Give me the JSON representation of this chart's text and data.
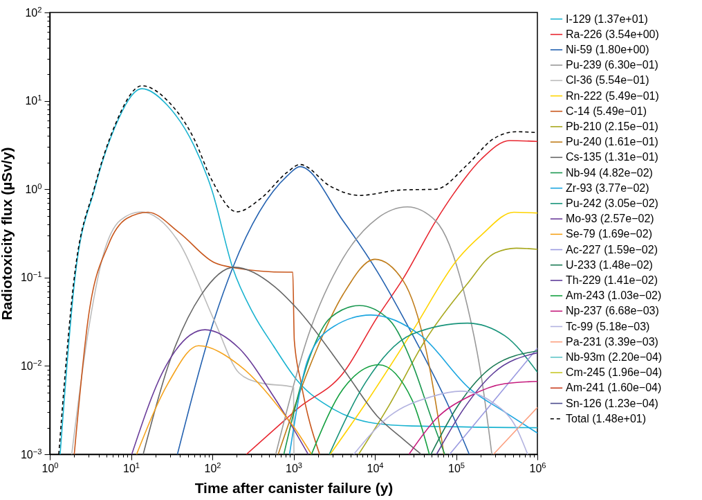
{
  "chart_data": {
    "type": "line",
    "xlabel": "Time after canister failure (y)",
    "ylabel": "Radiotoxicity flux (µSv/y)",
    "log": "xy",
    "legend": "right",
    "xlim": [
      1,
      1000000
    ],
    "ylim": [
      0.001,
      100
    ],
    "xticks": [
      {
        "value": 1,
        "label": "10$^{0}$"
      },
      {
        "value": 2,
        "label": null
      },
      {
        "value": 3,
        "label": null
      },
      {
        "value": 4,
        "label": null
      },
      {
        "value": 5,
        "label": null
      },
      {
        "value": 6,
        "label": null
      },
      {
        "value": 7,
        "label": null
      },
      {
        "value": 8,
        "label": null
      },
      {
        "value": 9,
        "label": null
      },
      {
        "value": 10,
        "label": "10$^{1}$"
      },
      {
        "value": 20,
        "label": null
      },
      {
        "value": 30,
        "label": null
      },
      {
        "value": 40,
        "label": null
      },
      {
        "value": 50,
        "label": null
      },
      {
        "value": 60,
        "label": null
      },
      {
        "value": 70,
        "label": null
      },
      {
        "value": 80,
        "label": null
      },
      {
        "value": 90,
        "label": null
      },
      {
        "value": 100,
        "label": "10$^{2}$"
      },
      {
        "value": 200,
        "label": null
      },
      {
        "value": 300,
        "label": null
      },
      {
        "value": 400,
        "label": null
      },
      {
        "value": 500,
        "label": null
      },
      {
        "value": 600,
        "label": null
      },
      {
        "value": 700,
        "label": null
      },
      {
        "value": 800,
        "label": null
      },
      {
        "value": 900,
        "label": null
      },
      {
        "value": 1000,
        "label": "10$^{3}$"
      },
      {
        "value": 2000,
        "label": null
      },
      {
        "value": 3000,
        "label": null
      },
      {
        "value": 4000,
        "label": null
      },
      {
        "value": 5000,
        "label": null
      },
      {
        "value": 6000,
        "label": null
      },
      {
        "value": 7000,
        "label": null
      },
      {
        "value": 8000,
        "label": null
      },
      {
        "value": 9000,
        "label": null
      },
      {
        "value": 10000,
        "label": "10$^{4}$"
      },
      {
        "value": 20000,
        "label": null
      },
      {
        "value": 30000,
        "label": null
      },
      {
        "value": 40000,
        "label": null
      },
      {
        "value": 50000,
        "label": null
      },
      {
        "value": 60000,
        "label": null
      },
      {
        "value": 70000,
        "label": null
      },
      {
        "value": 80000,
        "label": null
      },
      {
        "value": 90000,
        "label": null
      },
      {
        "value": 100000,
        "label": "10$^{5}$"
      },
      {
        "value": 200000,
        "label": null
      },
      {
        "value": 300000,
        "label": null
      },
      {
        "value": 400000,
        "label": null
      },
      {
        "value": 500000,
        "label": null
      },
      {
        "value": 600000,
        "label": null
      },
      {
        "value": 700000,
        "label": null
      },
      {
        "value": 800000,
        "label": null
      },
      {
        "value": 900000,
        "label": null
      },
      {
        "value": 1000000,
        "label": "10$^{6}$"
      }
    ],
    "yticks": [
      {
        "value": 0.001,
        "label": "10$^{−3}$"
      },
      {
        "value": 0.002,
        "label": null
      },
      {
        "value": 0.003,
        "label": null
      },
      {
        "value": 0.004,
        "label": null
      },
      {
        "value": 0.005,
        "label": null
      },
      {
        "value": 0.006,
        "label": null
      },
      {
        "value": 0.007,
        "label": null
      },
      {
        "value": 0.008,
        "label": null
      },
      {
        "value": 0.009,
        "label": null
      },
      {
        "value": 0.01,
        "label": "10$^{−2}$"
      },
      {
        "value": 0.02,
        "label": null
      },
      {
        "value": 0.03,
        "label": null
      },
      {
        "value": 0.04,
        "label": null
      },
      {
        "value": 0.05,
        "label": null
      },
      {
        "value": 0.06,
        "label": null
      },
      {
        "value": 0.07,
        "label": null
      },
      {
        "value": 0.08,
        "label": null
      },
      {
        "value": 0.09,
        "label": null
      },
      {
        "value": 0.1,
        "label": "10$^{−1}$"
      },
      {
        "value": 0.2,
        "label": null
      },
      {
        "value": 0.3,
        "label": null
      },
      {
        "value": 0.4,
        "label": null
      },
      {
        "value": 0.5,
        "label": null
      },
      {
        "value": 0.6,
        "label": null
      },
      {
        "value": 0.7,
        "label": null
      },
      {
        "value": 0.8,
        "label": null
      },
      {
        "value": 0.9,
        "label": null
      },
      {
        "value": 1,
        "label": "10$^{0}$"
      },
      {
        "value": 2,
        "label": null
      },
      {
        "value": 3,
        "label": null
      },
      {
        "value": 4,
        "label": null
      },
      {
        "value": 5,
        "label": null
      },
      {
        "value": 6,
        "label": null
      },
      {
        "value": 7,
        "label": null
      },
      {
        "value": 8,
        "label": null
      },
      {
        "value": 9,
        "label": null
      },
      {
        "value": 10,
        "label": "10$^{1}$"
      },
      {
        "value": 20,
        "label": null
      },
      {
        "value": 30,
        "label": null
      },
      {
        "value": 40,
        "label": null
      },
      {
        "value": 50,
        "label": null
      },
      {
        "value": 60,
        "label": null
      },
      {
        "value": 70,
        "label": null
      },
      {
        "value": 80,
        "label": null
      },
      {
        "value": 90,
        "label": null
      },
      {
        "value": 100,
        "label": "10$^{2}$"
      }
    ],
    "series": [
      {
        "name": "I-129 (1.37e+01)",
        "color": "#1ab3d0",
        "x": [
          1.34,
          2.04,
          3.55,
          6.31,
          13.6,
          28,
          59,
          98,
          178,
          316,
          562,
          1100,
          3090,
          10000,
          28800,
          1000000
        ],
        "values": [
          0.001,
          0.1,
          1,
          5.0,
          13.7,
          8.9,
          3.16,
          1,
          0.129,
          0.0398,
          0.017,
          0.0069,
          0.00324,
          0.00224,
          0.00209,
          0.002
        ]
      },
      {
        "name": "Ra-226 (3.54e+00)",
        "color": "#e8262f",
        "x": [
          263,
          832,
          1100,
          4070,
          10700,
          22400,
          56200,
          93300,
          204000,
          457000,
          1000000
        ],
        "values": [
          0.001,
          0.00257,
          0.00324,
          0.0083,
          0.0355,
          0.098,
          0.437,
          0.89,
          2.19,
          3.55,
          3.47
        ]
      },
      {
        "name": "Ni-59 (1.80e+00)",
        "color": "#2361b0",
        "x": [
          37.2,
          105,
          178,
          832,
          1200,
          4070,
          10700,
          28800,
          77600,
          145000
        ],
        "values": [
          0.001,
          0.0331,
          0.129,
          1.41,
          1.8,
          0.437,
          0.117,
          0.0229,
          0.0038,
          0.001
        ]
      },
      {
        "name": "Pu-239 (6.30e−01)",
        "color": "#999999",
        "x": [
          603,
          1510,
          4070,
          10700,
          25100,
          56200,
          123000,
          209000,
          275000
        ],
        "values": [
          0.001,
          0.0219,
          0.166,
          0.468,
          0.63,
          0.437,
          0.0724,
          0.0066,
          0.001
        ]
      },
      {
        "name": "Cl-36 (5.54e−01)",
        "color": "#bbbbbb",
        "x": [
          1.86,
          2.95,
          4.47,
          7.4,
          13.2,
          38.9,
          105,
          214,
          380,
          1000,
          1010
        ],
        "values": [
          0.001,
          0.0236,
          0.17,
          0.447,
          0.554,
          0.25,
          0.0331,
          0.0083,
          0.00646,
          0.00575,
          0.001
        ]
      },
      {
        "name": "Rn-222 (5.49e−01)",
        "color": "#ffd400",
        "x": [
          2820,
          7760,
          28800,
          107000,
          204000,
          513000,
          1000000
        ],
        "values": [
          0.001,
          0.0038,
          0.0245,
          0.166,
          0.302,
          0.549,
          0.537
        ]
      },
      {
        "name": "C-14 (5.49e−01)",
        "color": "#c8561b",
        "x": [
          2.0,
          2.95,
          5.25,
          8.9,
          16.2,
          38.9,
          105,
          186,
          832,
          977,
          1020,
          1230,
          2090
        ],
        "values": [
          0.001,
          0.033,
          0.234,
          0.468,
          0.549,
          0.324,
          0.148,
          0.129,
          0.115,
          0.115,
          0.0195,
          0.0066,
          0.001
        ]
      },
      {
        "name": "Pb-210 (2.15e−01)",
        "color": "#a8a81e",
        "x": [
          6310,
          15100,
          39800,
          132000,
          302000,
          550000,
          1000000
        ],
        "values": [
          0.001,
          0.00363,
          0.0182,
          0.0813,
          0.19,
          0.215,
          0.209
        ]
      },
      {
        "name": "Pu-240 (1.61e−01)",
        "color": "#c07d1b",
        "x": [
          646,
          1510,
          4070,
          10000,
          22400,
          42700,
          70800
        ],
        "values": [
          0.001,
          0.0089,
          0.0646,
          0.161,
          0.0912,
          0.0151,
          0.001
        ]
      },
      {
        "name": "Cs-135 (1.31e−01)",
        "color": "#666666",
        "x": [
          14.1,
          28.8,
          72.4,
          186,
          562,
          1100,
          4070,
          10700,
          22400,
          37200
        ],
        "values": [
          0.001,
          0.0102,
          0.063,
          0.131,
          0.0813,
          0.0447,
          0.0093,
          0.0027,
          0.00148,
          0.001
        ]
      },
      {
        "name": "Nb-94 (4.82e−02)",
        "color": "#1a9850",
        "x": [
          759,
          1510,
          2880,
          6460,
          15100,
          28800,
          50100,
          72400
        ],
        "values": [
          0.001,
          0.0112,
          0.0355,
          0.0482,
          0.0331,
          0.0107,
          0.0025,
          0.001
        ]
      },
      {
        "name": "Zr-93 (3.77e−02)",
        "color": "#1ca6e0",
        "x": [
          891,
          1510,
          3160,
          8910,
          37200,
          148000,
          398000,
          1000000
        ],
        "values": [
          0.001,
          0.012,
          0.0282,
          0.0377,
          0.0219,
          0.0055,
          0.003,
          0.00174
        ]
      },
      {
        "name": "Pu-242 (3.05e−02)",
        "color": "#17937a",
        "x": [
          2750,
          7760,
          28800,
          138000,
          398000,
          1000000
        ],
        "values": [
          0.001,
          0.0066,
          0.0229,
          0.0305,
          0.0219,
          0.0085
        ]
      },
      {
        "name": "Mo-93 (2.57e−02)",
        "color": "#6a3d9a",
        "x": [
          10.2,
          25.1,
          81.3,
          214,
          562,
          832,
          1510
        ],
        "values": [
          0.001,
          0.0089,
          0.0257,
          0.0158,
          0.00457,
          0.00257,
          0.001
        ]
      },
      {
        "name": "Se-79 (1.69e−02)",
        "color": "#f5a31b",
        "x": [
          11.7,
          28.8,
          67.6,
          214,
          832,
          1020,
          1660
        ],
        "values": [
          0.001,
          0.00646,
          0.0169,
          0.0102,
          0.00257,
          0.002,
          0.001
        ]
      },
      {
        "name": "Ac-227 (1.59e−02)",
        "color": "#9a9ae0",
        "x": [
          83200,
          1000000
        ],
        "values": [
          0.001,
          0.0159
        ]
      },
      {
        "name": "U-233 (1.48e−02)",
        "color": "#1b7a55",
        "x": [
          49000,
          107000,
          288000,
          1000000
        ],
        "values": [
          0.001,
          0.00363,
          0.01,
          0.0148
        ]
      },
      {
        "name": "Th-229 (1.41e−02)",
        "color": "#5e3c99",
        "x": [
          57500,
          123000,
          288000,
          1000000
        ],
        "values": [
          0.001,
          0.00324,
          0.0083,
          0.0141
        ]
      },
      {
        "name": "Am-243 (1.03e−02)",
        "color": "#14a040",
        "x": [
          1660,
          4070,
          11200,
          28800,
          46800
        ],
        "values": [
          0.001,
          0.0055,
          0.0103,
          0.0041,
          0.001
        ]
      },
      {
        "name": "Np-237 (6.68e−03)",
        "color": "#c51b7d",
        "x": [
          26300,
          56200,
          148000,
          398000,
          1000000
        ],
        "values": [
          0.001,
          0.0025,
          0.00457,
          0.0063,
          0.00668
        ]
      },
      {
        "name": "Tc-99 (5.18e−03)",
        "color": "#b3b3e0",
        "x": [
          5500,
          15100,
          49000,
          115000,
          288000,
          550000,
          759000
        ],
        "values": [
          0.001,
          0.0027,
          0.00447,
          0.00518,
          0.0038,
          0.002,
          0.001
        ]
      },
      {
        "name": "Pa-231 (3.39e−03)",
        "color": "#fc9f7f",
        "x": [
          288000,
          1000000
        ],
        "values": [
          0.001,
          0.00339
        ]
      },
      {
        "name": "Nb-93m (2.20e−04)",
        "color": "#5fc6c8"
      },
      {
        "name": "Cm-245 (1.96e−04)",
        "color": "#c8c828"
      },
      {
        "name": "Am-241 (1.60e−04)",
        "color": "#c83c1e"
      },
      {
        "name": "Sn-126 (1.23e−04)",
        "color": "#4b4b8c"
      },
      {
        "name": "Total (1.48e+01)",
        "color": "#000000",
        "line_style": "dashed",
        "x": [
          1.29,
          2.0,
          3.55,
          6.31,
          13.6,
          28.2,
          58.9,
          97.7,
          200,
          398,
          832,
          1200,
          2880,
          6460,
          20900,
          56200,
          138000,
          288000,
          550000,
          1000000
        ],
        "values": [
          0.001,
          0.1,
          1.05,
          5.25,
          14.8,
          10,
          3.8,
          1.29,
          0.555,
          0.79,
          1.55,
          1.9,
          1.07,
          0.85,
          0.98,
          1.0,
          1.9,
          3.72,
          4.47,
          4.37
        ]
      }
    ]
  }
}
